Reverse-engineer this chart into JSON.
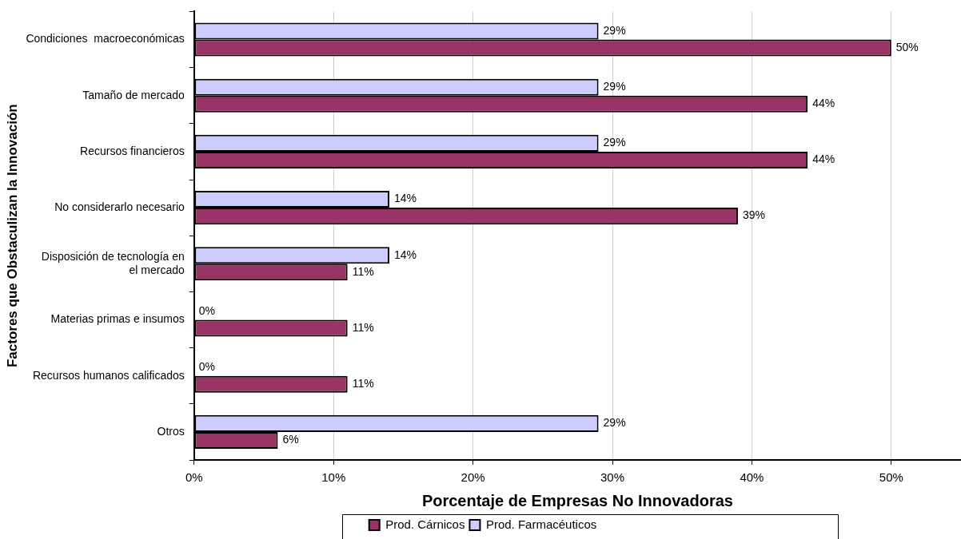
{
  "chart_data": {
    "type": "bar",
    "orientation": "horizontal",
    "xlabel": "Porcentaje de Empresas No Innovadoras",
    "ylabel": "Factores que Obstaculizan la Innovación",
    "categories": [
      "Condiciones  macroeconómicas",
      "Tamaño de mercado",
      "Recursos financieros",
      "No considerarlo necesario",
      "Disposición de tecnología en el mercado",
      "Materias primas e insumos",
      "Recursos humanos calificados",
      "Otros"
    ],
    "series": [
      {
        "name": "Prod. Cárnicos",
        "color": "#993366",
        "values": [
          50,
          44,
          44,
          39,
          11,
          11,
          11,
          6
        ],
        "value_labels": [
          "50%",
          "44%",
          "44%",
          "39%",
          "11%",
          "11%",
          "11%",
          "6%"
        ]
      },
      {
        "name": "Prod. Farmacéuticos",
        "color": "#ccccff",
        "values": [
          29,
          29,
          29,
          14,
          14,
          0,
          0,
          29
        ],
        "value_labels": [
          "29%",
          "29%",
          "29%",
          "14%",
          "14%",
          "0%",
          "0%",
          "29%"
        ]
      }
    ],
    "xlim": [
      0,
      55
    ],
    "xticks": [
      {
        "value": 0,
        "label": "0%"
      },
      {
        "value": 10,
        "label": "10%"
      },
      {
        "value": 20,
        "label": "20%"
      },
      {
        "value": 30,
        "label": "30%"
      },
      {
        "value": 40,
        "label": "40%"
      },
      {
        "value": 50,
        "label": "50%"
      }
    ],
    "grid": "x",
    "legend": "bottom"
  }
}
